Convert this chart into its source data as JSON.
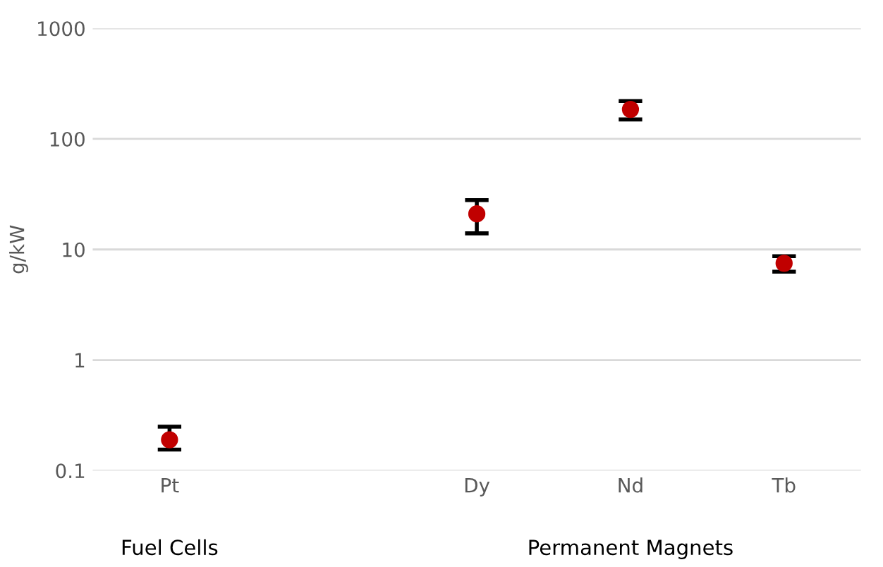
{
  "chart_data": {
    "type": "scatter",
    "ylabel": "g/kW",
    "categories": [
      "Pt",
      null,
      "Dy",
      "Nd",
      "Tb"
    ],
    "series": [
      {
        "color": "#c00000",
        "values": [
          0.19,
          null,
          21,
          185,
          7.5
        ],
        "errors": [
          [
            0.155,
            0.25
          ],
          null,
          [
            14,
            28
          ],
          [
            150,
            220
          ],
          [
            6.3,
            8.7
          ]
        ]
      }
    ],
    "log": "y",
    "ylim": [
      0.1,
      1000
    ],
    "yticks": [
      0.1,
      1,
      10,
      100,
      1000
    ],
    "grid": "y",
    "marker": "circle",
    "legend": false,
    "annotations": [
      "Fuel Cells",
      "Permanent Magnets"
    ]
  }
}
